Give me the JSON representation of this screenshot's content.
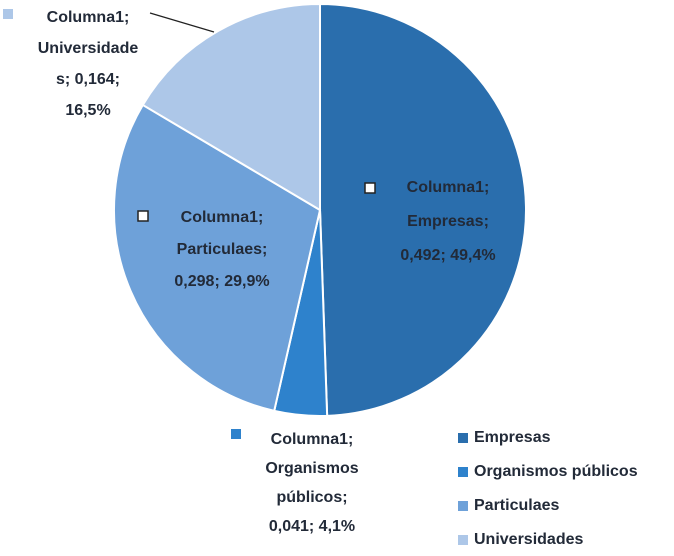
{
  "chart_data": {
    "type": "pie",
    "categories": [
      "Empresas",
      "Organismos públicos",
      "Particulaes",
      "Universidades"
    ],
    "values": [
      0.492,
      0.041,
      0.298,
      0.164
    ],
    "value_labels": [
      [
        "Columna1;",
        "Empresas;",
        "0,492; 49,4%"
      ],
      [
        "Columna1;",
        "Organismos",
        "públicos;",
        "0,041; 4,1%"
      ],
      [
        "Columna1;",
        "Particulaes;",
        "0,298; 29,9%"
      ],
      [
        "Columna1;",
        "Universidade",
        "s; 0,164;",
        "16,5%"
      ]
    ],
    "colors": [
      "#2a6ead",
      "#2e82cc",
      "#6ea1d9",
      "#adc7e8"
    ],
    "legend": "right"
  }
}
